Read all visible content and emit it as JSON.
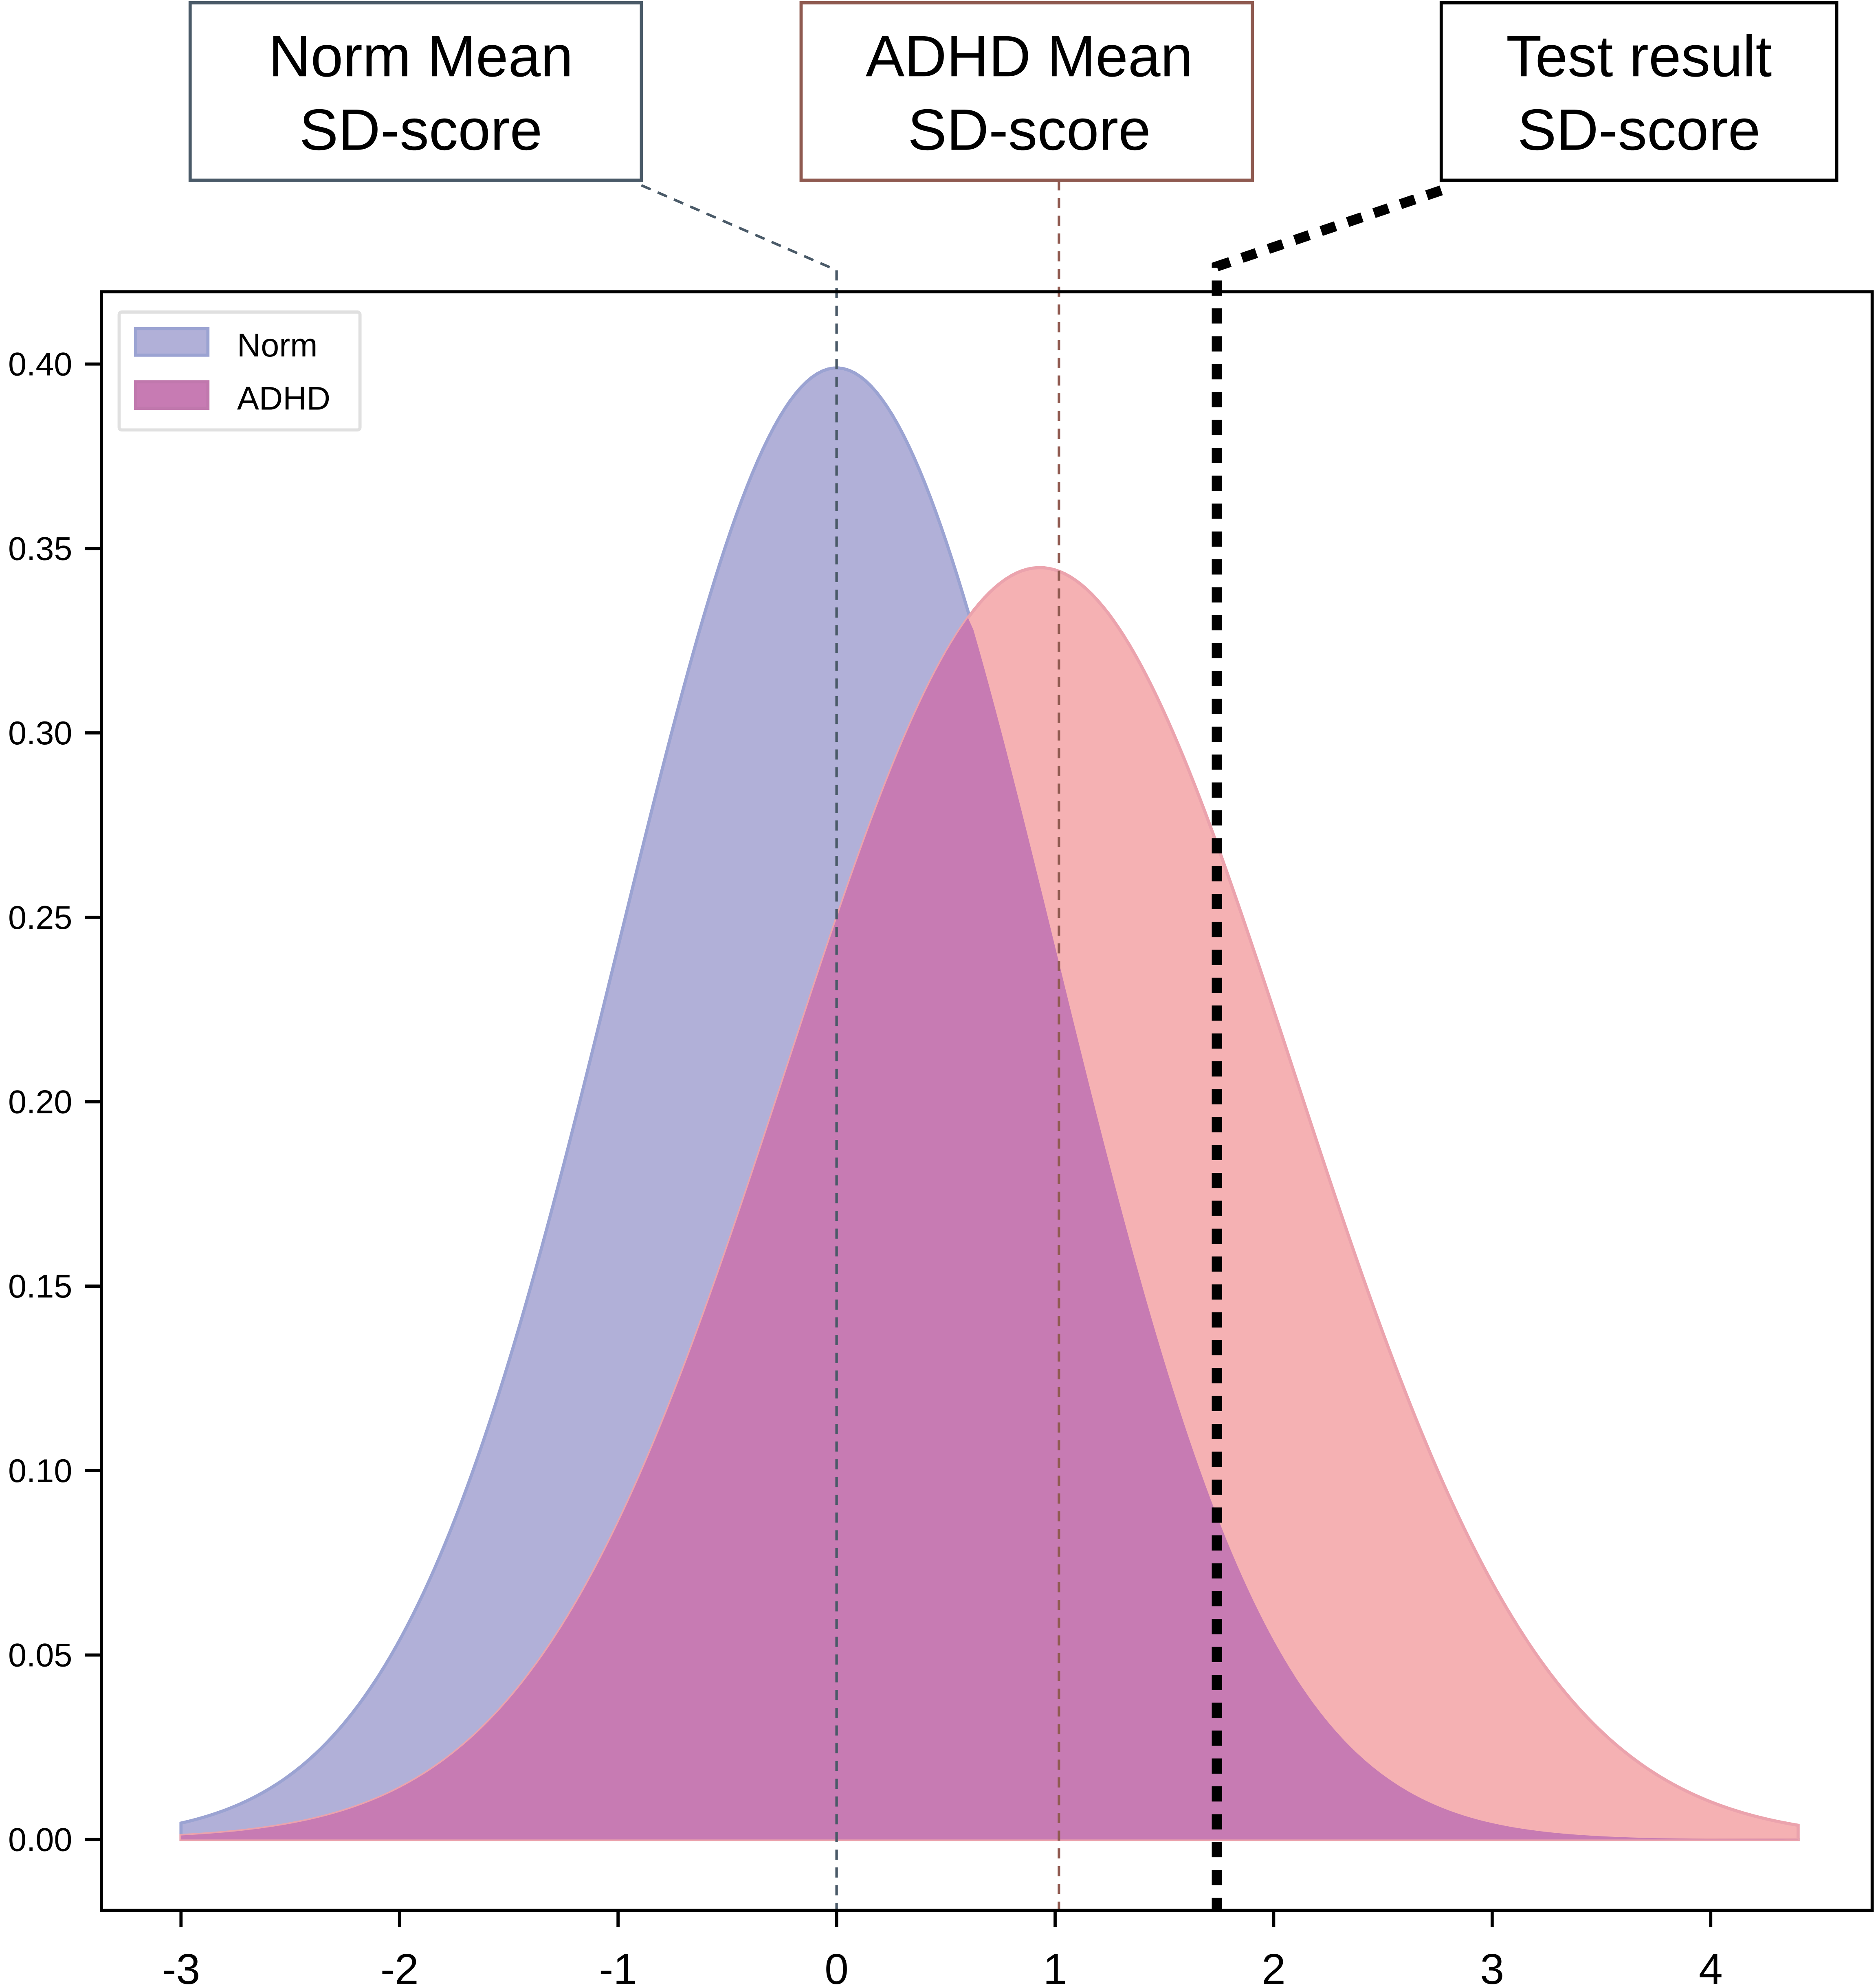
{
  "chart_data": {
    "type": "area",
    "title": "",
    "xlabel": "",
    "ylabel": "",
    "xlim": [
      -3.35,
      4.75
    ],
    "ylim": [
      -0.019,
      0.42
    ],
    "x_ticks": [
      "-3",
      "-2",
      "-1",
      "0",
      "1",
      "2",
      "3",
      "4"
    ],
    "y_ticks": [
      "0.00",
      "0.05",
      "0.10",
      "0.15",
      "0.20",
      "0.25",
      "0.30",
      "0.35",
      "0.40"
    ],
    "grid": false,
    "legend_position": "top-left",
    "series": [
      {
        "name": "Norm",
        "distribution": "normal",
        "mean": 0.0,
        "sd": 1.0,
        "x_range": [
          -3,
          4.4
        ],
        "peak": 0.399,
        "color": "#b1b0d8"
      },
      {
        "name": "ADHD",
        "distribution": "normal",
        "mean": 0.93,
        "sd": 1.157,
        "x_range": [
          -3,
          4.4
        ],
        "peak": 0.345,
        "color": "#f5b1b3"
      }
    ],
    "overlap_color": "#c77bb3",
    "annotations": [
      {
        "id": "norm",
        "line1": "Norm Mean",
        "line2": "SD-score",
        "x": 0.0,
        "color": "#4a5a68"
      },
      {
        "id": "adhd",
        "line1": "ADHD Mean",
        "line2": "SD-score",
        "x": 1.0,
        "color": "#8f5a50"
      },
      {
        "id": "test",
        "line1": "Test result",
        "line2": "SD-score",
        "x": 1.74,
        "color": "#000000"
      }
    ]
  }
}
